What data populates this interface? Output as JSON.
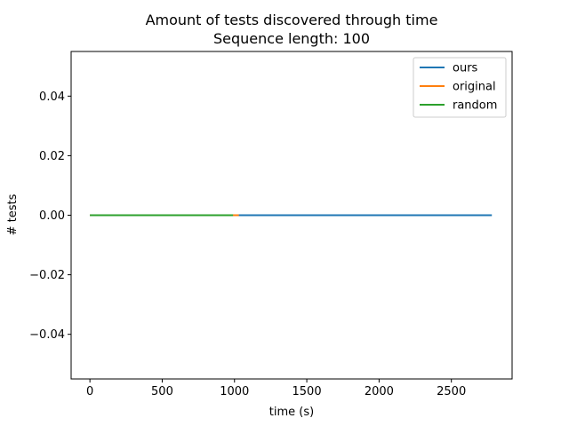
{
  "chart_data": {
    "type": "line",
    "title": "Amount of tests discovered through time",
    "subtitle": "Sequence length: 100",
    "xlabel": "time (s)",
    "ylabel": "# tests",
    "xlim": [
      -130,
      2920
    ],
    "ylim": [
      -0.055,
      0.055
    ],
    "xticks": [
      0,
      500,
      1000,
      1500,
      2000,
      2500
    ],
    "yticks": [
      0.04,
      0.02,
      0.0,
      -0.02,
      -0.04
    ],
    "xtick_labels": [
      "0",
      "500",
      "1000",
      "1500",
      "2000",
      "2500"
    ],
    "ytick_labels": [
      "0.04",
      "0.02",
      "0.00",
      "−0.02",
      "−0.04"
    ],
    "grid": false,
    "legend_position": "top-right",
    "series": [
      {
        "name": "ours",
        "color": "#1f77b4",
        "x": [
          0,
          2780
        ],
        "y": [
          0,
          0
        ]
      },
      {
        "name": "original",
        "color": "#ff7f0e",
        "x": [
          0,
          1030
        ],
        "y": [
          0,
          0
        ]
      },
      {
        "name": "random",
        "color": "#2ca02c",
        "x": [
          0,
          990
        ],
        "y": [
          0,
          0
        ]
      }
    ]
  }
}
